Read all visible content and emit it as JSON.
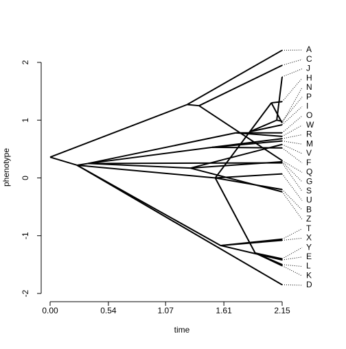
{
  "chart_data": {
    "type": "phenogram",
    "xlabel": "time",
    "ylabel": "phenotype",
    "xlim": [
      0,
      2.15
    ],
    "ylim": [
      -2,
      2
    ],
    "xticks": [
      {
        "value": 0,
        "label": "0.00"
      },
      0.54,
      1.07,
      1.61,
      2.15
    ],
    "yticks": [
      -2,
      -1,
      0,
      1,
      2
    ],
    "color": "#000000",
    "nodes": [
      {
        "time": 0,
        "value": 0.36,
        "parent": null
      },
      {
        "time": 0.25,
        "value": 0.22,
        "parent": 0
      },
      {
        "time": 1.27,
        "value": 1.27,
        "parent": 0
      },
      {
        "time": 1.38,
        "value": 1.25,
        "parent": 2
      },
      {
        "time": 0.35,
        "value": 0.25,
        "parent": 1
      },
      {
        "time": 1.53,
        "value": 0.0,
        "parent": 1
      },
      {
        "time": 1.58,
        "value": -1.17,
        "parent": 1
      },
      {
        "time": 1.72,
        "value": 0.78,
        "parent": 4
      },
      {
        "time": 1.5,
        "value": 0.53,
        "parent": 4
      },
      {
        "time": 1.3,
        "value": 0.17,
        "parent": 4
      },
      {
        "time": 1.9,
        "value": -1.3,
        "parent": 5
      },
      {
        "time": 1.85,
        "value": 0.8,
        "parent": 5
      },
      {
        "time": 2.05,
        "value": 1.3,
        "parent": 11
      },
      {
        "time": 2.1,
        "value": 1.0,
        "parent": 11
      },
      {
        "time": 2.15,
        "value": 2.21,
        "parent": 2,
        "label": "A"
      },
      {
        "time": 2.15,
        "value": 1.95,
        "parent": 3,
        "label": "C"
      },
      {
        "time": 2.15,
        "value": 1.75,
        "parent": 13,
        "label": "J"
      },
      {
        "time": 2.15,
        "value": 1.32,
        "parent": 12,
        "label": "H"
      },
      {
        "time": 2.15,
        "value": 0.95,
        "parent": 12,
        "label": "N"
      },
      {
        "time": 2.15,
        "value": 0.98,
        "parent": 13,
        "label": "P"
      },
      {
        "time": 2.15,
        "value": 0.92,
        "parent": 11,
        "label": "I"
      },
      {
        "time": 2.15,
        "value": 0.78,
        "parent": 7,
        "label": "O"
      },
      {
        "time": 2.15,
        "value": 0.72,
        "parent": 7,
        "label": "W"
      },
      {
        "time": 2.15,
        "value": 0.68,
        "parent": 8,
        "label": "R"
      },
      {
        "time": 2.15,
        "value": 0.64,
        "parent": 8,
        "label": "M"
      },
      {
        "time": 2.15,
        "value": 0.58,
        "parent": 9,
        "label": "V"
      },
      {
        "time": 2.15,
        "value": 0.52,
        "parent": 8,
        "label": "F"
      },
      {
        "time": 2.15,
        "value": 0.3,
        "parent": 3,
        "label": "Q"
      },
      {
        "time": 2.15,
        "value": 0.28,
        "parent": 9,
        "label": "G"
      },
      {
        "time": 2.15,
        "value": 0.26,
        "parent": 4,
        "label": "S"
      },
      {
        "time": 2.15,
        "value": 0.07,
        "parent": 5,
        "label": "U"
      },
      {
        "time": 2.15,
        "value": -0.2,
        "parent": 5,
        "label": "B"
      },
      {
        "time": 2.15,
        "value": -0.24,
        "parent": 9,
        "label": "Z"
      },
      {
        "time": 2.15,
        "value": -1.06,
        "parent": 6,
        "label": "T"
      },
      {
        "time": 2.15,
        "value": -1.08,
        "parent": 6,
        "label": "X"
      },
      {
        "time": 2.15,
        "value": -1.4,
        "parent": 10,
        "label": "Y"
      },
      {
        "time": 2.15,
        "value": -1.42,
        "parent": 6,
        "label": "E"
      },
      {
        "time": 2.15,
        "value": -1.5,
        "parent": 10,
        "label": "L"
      },
      {
        "time": 2.15,
        "value": -1.52,
        "parent": 10,
        "label": "K"
      },
      {
        "time": 2.15,
        "value": -1.85,
        "parent": 1,
        "label": "D"
      }
    ]
  }
}
